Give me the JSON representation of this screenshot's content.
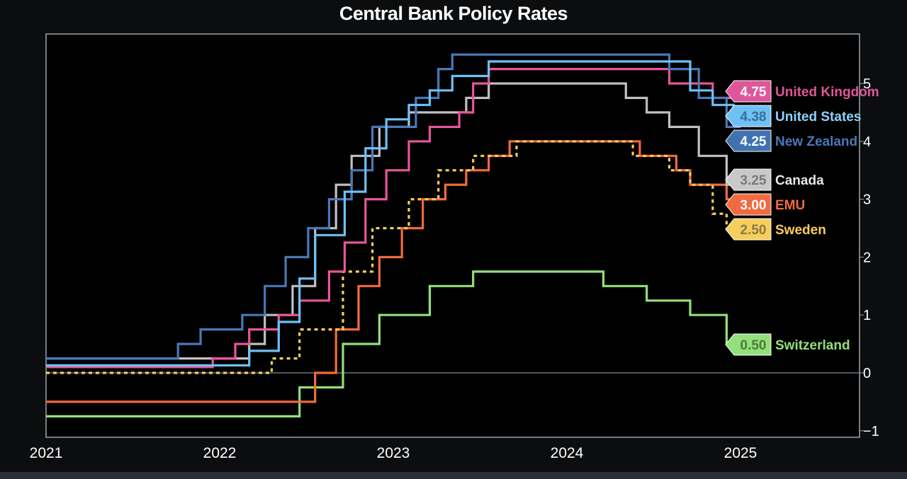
{
  "chart_data": {
    "type": "line",
    "title": "Central Bank Policy Rates",
    "xlabel": "",
    "ylabel": "",
    "xlim": [
      2021.0,
      2025.75
    ],
    "ylim": [
      -1.1,
      5.7
    ],
    "x_ticks": [
      "2021",
      "2022",
      "2023",
      "2024",
      "2025"
    ],
    "y_ticks": [
      "-1",
      "0",
      "1",
      "2",
      "3",
      "4",
      "5"
    ],
    "grid": false,
    "line_shape": "step",
    "series": [
      {
        "name": "United Kingdom",
        "color": "#e8559b",
        "dash": false,
        "last_value": "4.75",
        "points": [
          [
            2021.0,
            0.1
          ],
          [
            2021.96,
            0.25
          ],
          [
            2022.09,
            0.5
          ],
          [
            2022.17,
            0.75
          ],
          [
            2022.34,
            1.0
          ],
          [
            2022.46,
            1.25
          ],
          [
            2022.63,
            1.75
          ],
          [
            2022.72,
            2.25
          ],
          [
            2022.84,
            3.0
          ],
          [
            2022.96,
            3.5
          ],
          [
            2023.09,
            4.0
          ],
          [
            2023.21,
            4.25
          ],
          [
            2023.38,
            4.5
          ],
          [
            2023.46,
            5.0
          ],
          [
            2023.55,
            5.25
          ],
          [
            2024.59,
            5.0
          ],
          [
            2024.84,
            4.75
          ],
          [
            2025.0,
            4.75
          ]
        ]
      },
      {
        "name": "United States",
        "color": "#6ec1f5",
        "dash": false,
        "last_value": "4.38",
        "points": [
          [
            2021.0,
            0.13
          ],
          [
            2022.17,
            0.38
          ],
          [
            2022.34,
            0.88
          ],
          [
            2022.46,
            1.63
          ],
          [
            2022.55,
            2.38
          ],
          [
            2022.72,
            3.13
          ],
          [
            2022.84,
            3.88
          ],
          [
            2022.96,
            4.38
          ],
          [
            2023.09,
            4.63
          ],
          [
            2023.21,
            4.88
          ],
          [
            2023.34,
            5.13
          ],
          [
            2023.55,
            5.38
          ],
          [
            2024.71,
            4.88
          ],
          [
            2024.84,
            4.63
          ],
          [
            2024.96,
            4.38
          ],
          [
            2025.0,
            4.38
          ]
        ]
      },
      {
        "name": "New Zealand",
        "color": "#4a78b8",
        "dash": false,
        "last_value": "4.25",
        "points": [
          [
            2021.0,
            0.25
          ],
          [
            2021.76,
            0.5
          ],
          [
            2021.89,
            0.75
          ],
          [
            2022.13,
            1.0
          ],
          [
            2022.26,
            1.5
          ],
          [
            2022.38,
            2.0
          ],
          [
            2022.51,
            2.5
          ],
          [
            2022.63,
            3.0
          ],
          [
            2022.76,
            3.5
          ],
          [
            2022.88,
            4.25
          ],
          [
            2023.13,
            4.75
          ],
          [
            2023.26,
            5.25
          ],
          [
            2023.34,
            5.5
          ],
          [
            2024.59,
            5.25
          ],
          [
            2024.76,
            4.75
          ],
          [
            2024.92,
            4.25
          ],
          [
            2025.0,
            4.25
          ]
        ]
      },
      {
        "name": "Canada",
        "color": "#c0c0c0",
        "dash": false,
        "last_value": "3.25",
        "points": [
          [
            2021.0,
            0.25
          ],
          [
            2022.17,
            0.5
          ],
          [
            2022.26,
            1.0
          ],
          [
            2022.42,
            1.5
          ],
          [
            2022.55,
            2.5
          ],
          [
            2022.67,
            3.25
          ],
          [
            2022.76,
            3.75
          ],
          [
            2022.92,
            4.25
          ],
          [
            2023.09,
            4.5
          ],
          [
            2023.42,
            4.75
          ],
          [
            2023.55,
            5.0
          ],
          [
            2024.34,
            4.75
          ],
          [
            2024.46,
            4.5
          ],
          [
            2024.59,
            4.25
          ],
          [
            2024.76,
            3.75
          ],
          [
            2024.92,
            3.25
          ],
          [
            2025.0,
            3.25
          ]
        ]
      },
      {
        "name": "EMU",
        "color": "#f26a3f",
        "dash": false,
        "last_value": "3.00",
        "points": [
          [
            2021.0,
            -0.5
          ],
          [
            2022.55,
            0.0
          ],
          [
            2022.67,
            0.75
          ],
          [
            2022.8,
            1.5
          ],
          [
            2022.92,
            2.0
          ],
          [
            2023.05,
            2.5
          ],
          [
            2023.17,
            3.0
          ],
          [
            2023.3,
            3.25
          ],
          [
            2023.42,
            3.5
          ],
          [
            2023.55,
            3.75
          ],
          [
            2023.67,
            4.0
          ],
          [
            2024.42,
            3.75
          ],
          [
            2024.63,
            3.5
          ],
          [
            2024.71,
            3.25
          ],
          [
            2024.92,
            3.0
          ],
          [
            2025.0,
            3.0
          ]
        ]
      },
      {
        "name": "Sweden",
        "color": "#f7cd5d",
        "dash": true,
        "last_value": "2.50",
        "points": [
          [
            2021.0,
            0.0
          ],
          [
            2022.3,
            0.25
          ],
          [
            2022.46,
            0.75
          ],
          [
            2022.71,
            1.75
          ],
          [
            2022.88,
            2.5
          ],
          [
            2023.09,
            3.0
          ],
          [
            2023.26,
            3.5
          ],
          [
            2023.46,
            3.75
          ],
          [
            2023.71,
            4.0
          ],
          [
            2024.38,
            3.75
          ],
          [
            2024.59,
            3.5
          ],
          [
            2024.71,
            3.25
          ],
          [
            2024.84,
            2.75
          ],
          [
            2024.92,
            2.5
          ],
          [
            2025.0,
            2.5
          ]
        ]
      },
      {
        "name": "Switzerland",
        "color": "#93e07a",
        "dash": false,
        "last_value": "0.50",
        "points": [
          [
            2021.0,
            -0.75
          ],
          [
            2022.46,
            -0.25
          ],
          [
            2022.71,
            0.5
          ],
          [
            2022.92,
            1.0
          ],
          [
            2023.21,
            1.5
          ],
          [
            2023.46,
            1.75
          ],
          [
            2024.21,
            1.5
          ],
          [
            2024.46,
            1.25
          ],
          [
            2024.71,
            1.0
          ],
          [
            2024.92,
            0.5
          ],
          [
            2025.0,
            0.5
          ]
        ]
      }
    ],
    "labels": [
      {
        "series": "United Kingdom",
        "value": "4.75",
        "name": "United Kingdom",
        "box": "#e0569a",
        "value_color": "#ffffff",
        "name_color": "#e0569a"
      },
      {
        "series": "United States",
        "value": "4.38",
        "name": "United States",
        "box": "#6ec1f5",
        "value_color": "#3b6d98",
        "name_color": "#8fd0ff"
      },
      {
        "series": "New Zealand",
        "value": "4.25",
        "name": "New Zealand",
        "box": "#4072b0",
        "value_color": "#ffffff",
        "name_color": "#4a78b8"
      },
      {
        "series": "Canada",
        "value": "3.25",
        "name": "Canada",
        "box": "#c8c8c8",
        "value_color": "#7a7a7a",
        "name_color": "#e6e6e6"
      },
      {
        "series": "EMU",
        "value": "3.00",
        "name": "EMU",
        "box": "#f26a3f",
        "value_color": "#ffffff",
        "name_color": "#f26a3f"
      },
      {
        "series": "Sweden",
        "value": "2.50",
        "name": "Sweden",
        "box": "#f7cd5d",
        "value_color": "#8a7a40",
        "name_color": "#f7cd5d"
      },
      {
        "series": "Switzerland",
        "value": "0.50",
        "name": "Switzerland",
        "box": "#93e07a",
        "value_color": "#4c7a40",
        "name_color": "#93e07a"
      }
    ],
    "colors": {
      "background": "#0c0d0f",
      "plot_background": "#000000",
      "plot_border": "#9aa4ae",
      "zero_line": "#7d8a92",
      "tick_text": "#ffffff"
    }
  }
}
